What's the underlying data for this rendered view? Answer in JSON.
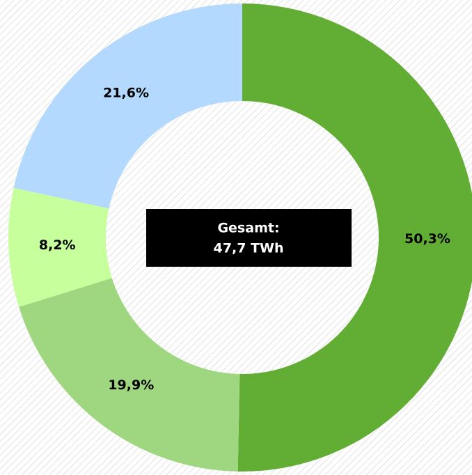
{
  "chart_data": {
    "type": "donut",
    "values": [
      50.3,
      19.9,
      8.2,
      21.6
    ],
    "value_labels": [
      "50,3%",
      "19,9%",
      "8,2%",
      "21,6%"
    ],
    "colors": [
      "#62ae35",
      "#9ed77f",
      "#c6ff9c",
      "#b3d9ff"
    ],
    "center_label": [
      "Gesamt:",
      "47,7 TWh"
    ]
  }
}
